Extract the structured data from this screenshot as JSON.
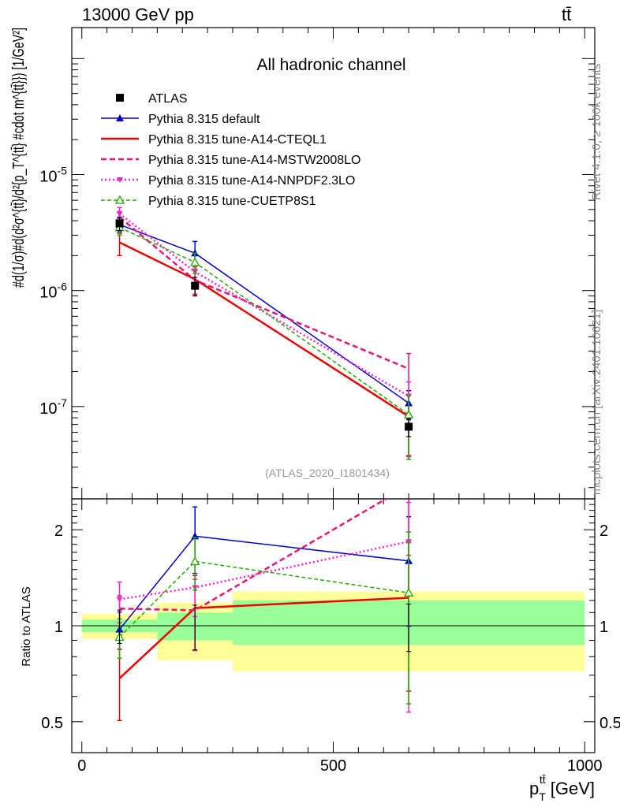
{
  "header": {
    "left": "13000 GeV pp",
    "right": "tt̄"
  },
  "side_labels": {
    "rivet": "Rivet 4.1.0, ≥ 100k events",
    "mcplots": "mcplots.cern.ch [arXiv:2401.10621]"
  },
  "chart_data": {
    "type": "line",
    "title": "All hadronic channel",
    "analysis_label": "(ATLAS_2020_I1801434)",
    "xlabel": "p_T^{tt̄} [GeV]",
    "ylabel": "#d(1/σ)#d(d²σ^{tt̄}/d²{p_T^{tt̄} #cdot m^{tt̄}}) [1/GeV²]",
    "ratio_ylabel": "Ratio to ATLAS",
    "xlim": [
      -20,
      1020
    ],
    "ylim_log": [
      1.6e-08,
      0.000185
    ],
    "ratio_ylim": [
      0.4,
      2.5
    ],
    "x_ticks": [
      "0",
      "500",
      "1000"
    ],
    "y_ticks": [
      "10^-7",
      "10^-6",
      "10^-5"
    ],
    "ratio_ticks": [
      "0.5",
      "1",
      "2"
    ],
    "bins": [
      [
        0,
        150
      ],
      [
        150,
        300
      ],
      [
        300,
        1000
      ]
    ],
    "x": [
      75,
      225,
      650
    ],
    "data": {
      "name": "ATLAS",
      "color": "#000000",
      "values": [
        3.8e-06,
        1.1e-06,
        6.7e-08
      ],
      "errors": [
        [
          5e-07,
          5e-07
        ],
        [
          2e-07,
          2e-07
        ],
        [
          1.2e-08,
          1.2e-08
        ]
      ],
      "band_stat": [
        [
          0.955,
          1.045
        ],
        [
          0.9,
          1.1
        ],
        [
          0.87,
          1.2
        ]
      ],
      "band_total": [
        [
          0.91,
          1.09
        ],
        [
          0.78,
          1.18
        ],
        [
          0.72,
          1.28
        ]
      ]
    },
    "series": [
      {
        "name": "Pythia 8.315 default",
        "color": "#0000cc",
        "dash": "",
        "width": 1.5,
        "marker": "tri",
        "values": [
          3.7e-06,
          2.1e-06,
          1.07e-07
        ],
        "errors": [
          [
            5e-07,
            5e-07
          ],
          [
            3.5e-07,
            5.5e-07
          ],
          [
            3e-08,
            3e-08
          ]
        ]
      },
      {
        "name": "Pythia 8.315 tune-A14-CTEQL1",
        "color": "#ee0000",
        "dash": "",
        "width": 2.5,
        "marker": "none",
        "values": [
          2.6e-06,
          1.25e-06,
          8.2e-08
        ],
        "errors": [
          [
            6e-07,
            5e-07
          ],
          [
            3.5e-07,
            3.5e-07
          ],
          [
            4.5e-08,
            4.5e-08
          ]
        ]
      },
      {
        "name": "Pythia 8.315 tune-A14-MSTW2008LO",
        "color": "#ee1177",
        "dash": "7,4",
        "width": 2.5,
        "marker": "none",
        "values": [
          4.3e-06,
          1.23e-06,
          2.12e-07
        ],
        "errors": [
          [
            5e-07,
            5e-07
          ],
          [
            3e-07,
            3e-07
          ],
          [
            1.75e-07,
            7.5e-08
          ]
        ]
      },
      {
        "name": "Pythia 8.315 tune-A14-NNPDF2.3LO",
        "color": "#ff22cc",
        "dash": "2,3",
        "width": 2.5,
        "marker": "tri-down",
        "values": [
          4.6e-06,
          1.45e-06,
          1.23e-07
        ],
        "errors": [
          [
            6e-07,
            6e-07
          ],
          [
            3e-07,
            3e-07
          ],
          [
            8.5e-08,
            4e-08
          ]
        ]
      },
      {
        "name": "Pythia 8.315 tune-CUETP8S1",
        "color": "#22aa00",
        "dash": "5,3",
        "width": 1.5,
        "marker": "tri-open",
        "values": [
          3.5e-06,
          1.75e-06,
          8.5e-08
        ],
        "errors": [
          [
            5e-07,
            5e-07
          ],
          [
            3.5e-07,
            3.5e-07
          ],
          [
            5e-08,
            4e-08
          ]
        ]
      }
    ],
    "ratio_errors": {
      "data": [
        [
          0.12,
          0.12
        ],
        [
          0.16,
          0.16
        ],
        [
          0.17,
          0.17
        ]
      ],
      "series": [
        [
          [
            0.13,
            0.13
          ],
          [
            0.45,
            0.45
          ],
          [
            0.6,
            0.6
          ]
        ],
        [
          [
            0.18,
            0.16
          ],
          [
            0.3,
            0.3
          ],
          [
            0.6,
            0.6
          ]
        ],
        [
          [
            0.11,
            0.11
          ],
          [
            0.28,
            0.28
          ],
          [
            1.5,
            1.0
          ]
        ],
        [
          [
            0.16,
            0.16
          ],
          [
            0.25,
            0.25
          ],
          [
            1.3,
            0.6
          ]
        ],
        [
          [
            0.13,
            0.13
          ],
          [
            0.3,
            0.3
          ],
          [
            0.7,
            0.7
          ]
        ]
      ]
    }
  }
}
